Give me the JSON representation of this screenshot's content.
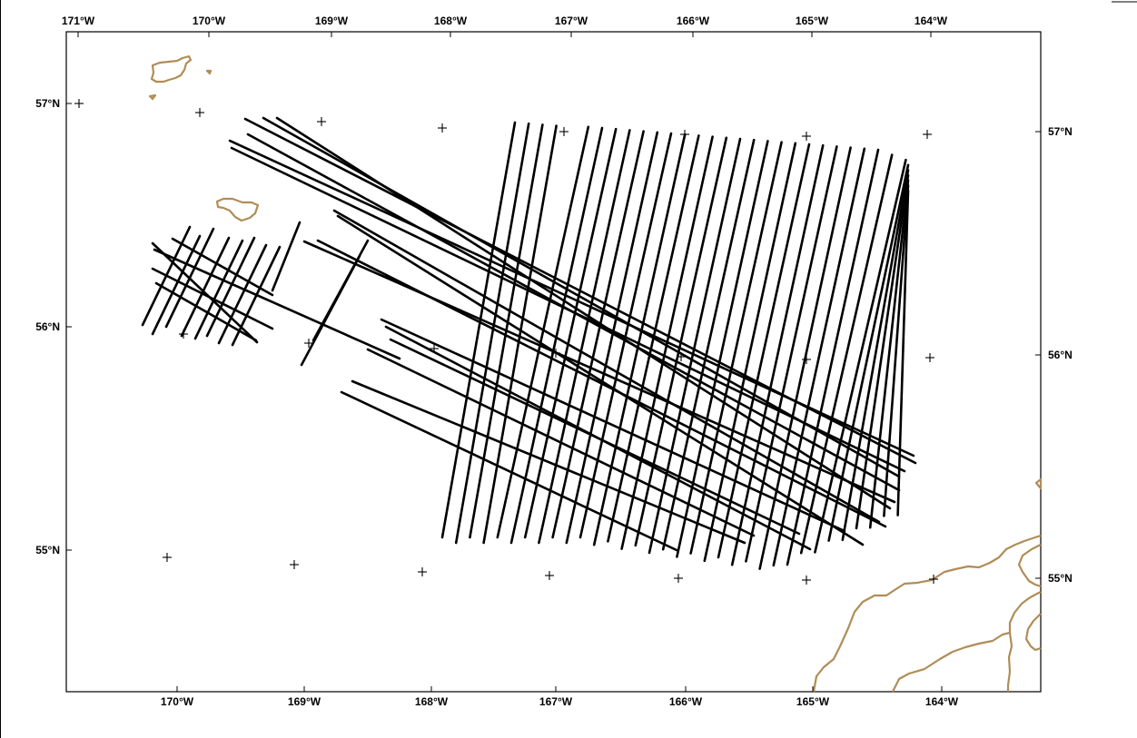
{
  "map": {
    "top_lon_labels": [
      "171°W",
      "170°W",
      "169°W",
      "168°W",
      "167°W",
      "166°W",
      "165°W",
      "164°W"
    ],
    "bottom_lon_labels": [
      "170°W",
      "169°W",
      "168°W",
      "167°W",
      "166°W",
      "165°W",
      "164°W"
    ],
    "left_lat_labels": [
      "57°N",
      "56°N",
      "55°N"
    ],
    "right_lat_labels": [
      "57°N",
      "56°N",
      "55°N"
    ],
    "colors": {
      "frame": "#000000",
      "tracks": "#000000",
      "coastline": "#b08d57",
      "background": "#ffffff"
    },
    "features": [
      "survey-tracklines",
      "graticule-crosses",
      "coastline-islands",
      "coastline-mainland"
    ]
  }
}
